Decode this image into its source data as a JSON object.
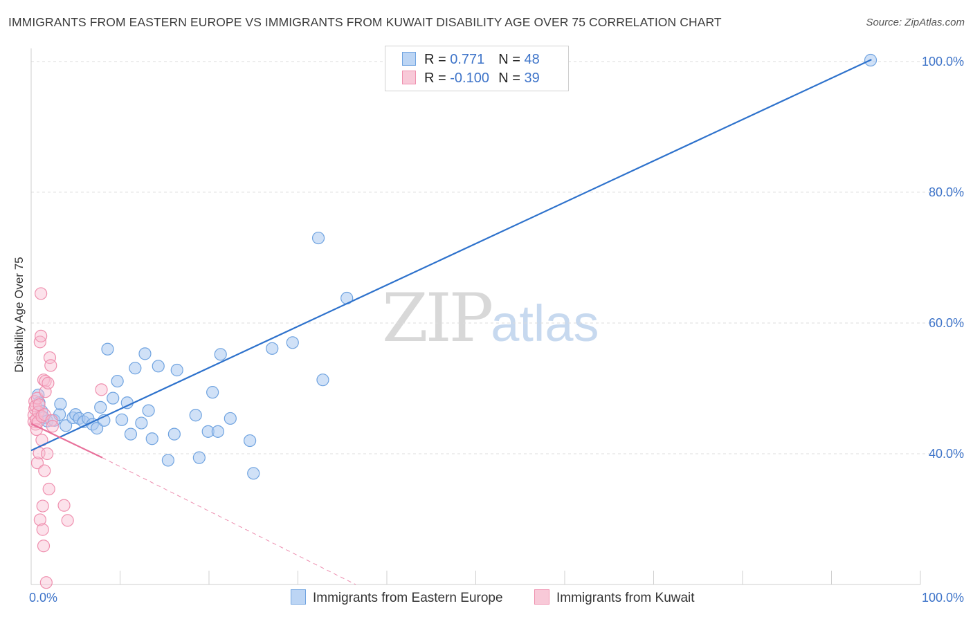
{
  "title": "IMMIGRANTS FROM EASTERN EUROPE VS IMMIGRANTS FROM KUWAIT DISABILITY AGE OVER 75 CORRELATION CHART",
  "source": "Source: ZipAtlas.com",
  "watermark": {
    "zip": "ZIP",
    "atlas": "atlas"
  },
  "legend_top": {
    "rows": [
      {
        "r_label": "R = ",
        "r_value": "0.771",
        "n_label": "N = ",
        "n_value": "48"
      },
      {
        "r_label": "R = ",
        "r_value": "-0.100",
        "n_label": "N = ",
        "n_value": "39"
      }
    ]
  },
  "chart_data": {
    "type": "scatter",
    "title": "IMMIGRANTS FROM EASTERN EUROPE VS IMMIGRANTS FROM KUWAIT DISABILITY AGE OVER 75 CORRELATION CHART",
    "xlabel": "",
    "ylabel": "Disability Age Over 75",
    "xlim": [
      0,
      100
    ],
    "ylim": [
      20,
      102
    ],
    "x_tick_labels": [
      {
        "value": 0,
        "label": "0.0%"
      },
      {
        "value": 100,
        "label": "100.0%"
      }
    ],
    "y_tick_labels": [
      {
        "value": 40,
        "label": "40.0%"
      },
      {
        "value": 60,
        "label": "60.0%"
      },
      {
        "value": 80,
        "label": "80.0%"
      },
      {
        "value": 100,
        "label": "100.0%"
      }
    ],
    "grid": true,
    "legend_position": "bottom",
    "colors": {
      "eastern_europe": "#6fa3e0",
      "kuwait": "#ef8fae",
      "blue_line": "#2e72cc",
      "pink_line": "#e8709a"
    },
    "series": [
      {
        "name": "Immigrants from Eastern Europe",
        "r": 0.771,
        "n": 48,
        "trend": {
          "x0": 0,
          "y0": 40.5,
          "x1": 94.5,
          "y1": 100.3
        },
        "points": [
          [
            0.8,
            49.0
          ],
          [
            0.9,
            47.8
          ],
          [
            1.2,
            46.5
          ],
          [
            1.4,
            45.5
          ],
          [
            1.8,
            45.0
          ],
          [
            2.6,
            45.1
          ],
          [
            3.2,
            46.0
          ],
          [
            3.3,
            47.6
          ],
          [
            3.9,
            44.3
          ],
          [
            4.7,
            45.5
          ],
          [
            5.0,
            46.0
          ],
          [
            5.4,
            45.4
          ],
          [
            5.9,
            44.9
          ],
          [
            6.4,
            45.4
          ],
          [
            6.9,
            44.5
          ],
          [
            7.4,
            43.9
          ],
          [
            7.8,
            47.1
          ],
          [
            8.2,
            45.1
          ],
          [
            8.6,
            56.0
          ],
          [
            9.2,
            48.5
          ],
          [
            9.7,
            51.1
          ],
          [
            10.2,
            45.2
          ],
          [
            10.8,
            47.8
          ],
          [
            11.2,
            43.0
          ],
          [
            11.7,
            53.1
          ],
          [
            12.4,
            44.7
          ],
          [
            12.8,
            55.3
          ],
          [
            13.2,
            46.6
          ],
          [
            13.6,
            42.3
          ],
          [
            14.3,
            53.4
          ],
          [
            15.4,
            39.0
          ],
          [
            16.1,
            43.0
          ],
          [
            16.4,
            52.8
          ],
          [
            18.5,
            45.9
          ],
          [
            18.9,
            39.4
          ],
          [
            19.9,
            43.4
          ],
          [
            20.4,
            49.4
          ],
          [
            21.0,
            43.4
          ],
          [
            21.3,
            55.2
          ],
          [
            22.4,
            45.4
          ],
          [
            24.6,
            42.0
          ],
          [
            25.0,
            37.0
          ],
          [
            27.1,
            56.1
          ],
          [
            29.4,
            57.0
          ],
          [
            32.3,
            73.0
          ],
          [
            32.8,
            51.3
          ],
          [
            35.5,
            63.8
          ],
          [
            94.4,
            100.2
          ]
        ]
      },
      {
        "name": "Immigrants from Kuwait",
        "r": -0.1,
        "n": 39,
        "trend": {
          "x0": 0,
          "y0": 44.6,
          "x1": 8.0,
          "y1": 39.4,
          "dashed_x1": 36.5,
          "dashed_y1": 20.0
        },
        "points": [
          [
            0.3,
            45.9
          ],
          [
            0.3,
            44.9
          ],
          [
            0.4,
            46.9
          ],
          [
            0.4,
            48.0
          ],
          [
            0.5,
            44.5
          ],
          [
            0.5,
            47.3
          ],
          [
            0.6,
            45.3
          ],
          [
            0.6,
            43.7
          ],
          [
            0.7,
            48.5
          ],
          [
            0.7,
            38.6
          ],
          [
            0.8,
            46.4
          ],
          [
            0.8,
            44.9
          ],
          [
            0.9,
            47.5
          ],
          [
            0.9,
            40.1
          ],
          [
            1.0,
            57.1
          ],
          [
            1.0,
            29.9
          ],
          [
            1.1,
            64.5
          ],
          [
            1.1,
            58.0
          ],
          [
            1.2,
            45.7
          ],
          [
            1.2,
            42.1
          ],
          [
            1.3,
            28.4
          ],
          [
            1.3,
            32.0
          ],
          [
            1.4,
            25.9
          ],
          [
            1.4,
            51.3
          ],
          [
            1.5,
            37.4
          ],
          [
            1.5,
            46.0
          ],
          [
            1.6,
            51.1
          ],
          [
            1.6,
            49.5
          ],
          [
            1.7,
            20.3
          ],
          [
            1.8,
            40.0
          ],
          [
            1.9,
            50.8
          ],
          [
            2.0,
            34.6
          ],
          [
            2.1,
            54.7
          ],
          [
            2.2,
            53.5
          ],
          [
            2.3,
            45.1
          ],
          [
            2.4,
            44.2
          ],
          [
            3.7,
            32.1
          ],
          [
            4.1,
            29.8
          ],
          [
            7.9,
            49.8
          ]
        ]
      }
    ]
  },
  "bottom_legend": {
    "items": [
      {
        "label": "Immigrants from Eastern Europe"
      },
      {
        "label": "Immigrants from Kuwait"
      }
    ]
  }
}
